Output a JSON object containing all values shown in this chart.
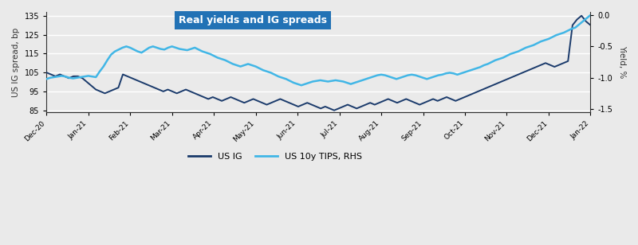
{
  "title": "Real yields and IG spreads",
  "title_bg_color": "#2272B5",
  "title_text_color": "#ffffff",
  "ylabel_left": "US IG spread, bp",
  "ylabel_right": "Yield, %",
  "ylim_left": [
    84,
    137
  ],
  "ylim_right": [
    -1.55,
    0.05
  ],
  "yticks_left": [
    85,
    95,
    105,
    115,
    125,
    135
  ],
  "yticks_right": [
    -1.5,
    -1.0,
    -0.5,
    0.0
  ],
  "bg_color": "#eaeaea",
  "line1_color": "#1a3a6b",
  "line2_color": "#41b6e6",
  "line1_label": "US IG",
  "line2_label": "US 10y TIPS, RHS",
  "x_labels": [
    "Dec-20",
    "Jan-21",
    "Feb-21",
    "Mar-21",
    "Apr-21",
    "May-21",
    "Jun-21",
    "Jul-21",
    "Aug-21",
    "Sep-21",
    "Oct-21",
    "Nov-21",
    "Dec-21",
    "Jan-22"
  ],
  "us_ig": [
    105,
    104,
    103,
    104,
    103,
    102,
    103,
    103,
    102,
    100,
    98,
    96,
    95,
    94,
    95,
    96,
    97,
    104,
    103,
    102,
    101,
    100,
    99,
    98,
    97,
    96,
    95,
    96,
    95,
    94,
    95,
    96,
    95,
    94,
    93,
    92,
    91,
    92,
    91,
    90,
    91,
    92,
    91,
    90,
    89,
    90,
    91,
    90,
    89,
    88,
    89,
    90,
    91,
    90,
    89,
    88,
    87,
    88,
    89,
    88,
    87,
    86,
    87,
    86,
    85,
    86,
    87,
    88,
    87,
    86,
    87,
    88,
    89,
    88,
    89,
    90,
    91,
    90,
    89,
    90,
    91,
    90,
    89,
    88,
    89,
    90,
    91,
    90,
    91,
    92,
    91,
    90,
    91,
    92,
    93,
    94,
    95,
    96,
    97,
    98,
    99,
    100,
    101,
    102,
    103,
    104,
    105,
    106,
    107,
    108,
    109,
    110,
    109,
    108,
    109,
    110,
    111,
    130,
    133,
    135,
    132,
    130
  ],
  "tips_yield": [
    -1.02,
    -1.0,
    -0.99,
    -0.98,
    -0.97,
    -0.98,
    -1.0,
    -1.01,
    -1.0,
    -0.99,
    -0.98,
    -0.97,
    -0.98,
    -0.99,
    -0.9,
    -0.82,
    -0.72,
    -0.63,
    -0.58,
    -0.55,
    -0.52,
    -0.5,
    -0.52,
    -0.55,
    -0.58,
    -0.6,
    -0.56,
    -0.52,
    -0.5,
    -0.52,
    -0.54,
    -0.55,
    -0.52,
    -0.5,
    -0.52,
    -0.54,
    -0.55,
    -0.56,
    -0.54,
    -0.52,
    -0.55,
    -0.58,
    -0.6,
    -0.62,
    -0.65,
    -0.68,
    -0.7,
    -0.72,
    -0.75,
    -0.78,
    -0.8,
    -0.82,
    -0.8,
    -0.78,
    -0.8,
    -0.82,
    -0.85,
    -0.88,
    -0.9,
    -0.92,
    -0.95,
    -0.98,
    -1.0,
    -1.02,
    -1.05,
    -1.08,
    -1.1,
    -1.12,
    -1.1,
    -1.08,
    -1.06,
    -1.05,
    -1.04,
    -1.05,
    -1.06,
    -1.05,
    -1.04,
    -1.05,
    -1.06,
    -1.08,
    -1.1,
    -1.08,
    -1.06,
    -1.04,
    -1.02,
    -1.0,
    -0.98,
    -0.96,
    -0.95,
    -0.96,
    -0.98,
    -1.0,
    -1.02,
    -1.0,
    -0.98,
    -0.96,
    -0.95,
    -0.96,
    -0.98,
    -1.0,
    -1.02,
    -1.0,
    -0.98,
    -0.96,
    -0.95,
    -0.93,
    -0.92,
    -0.93,
    -0.95,
    -0.93,
    -0.91,
    -0.89,
    -0.87,
    -0.85,
    -0.83,
    -0.8,
    -0.78,
    -0.75,
    -0.72,
    -0.7,
    -0.68,
    -0.65,
    -0.62,
    -0.6,
    -0.58,
    -0.55,
    -0.52,
    -0.5,
    -0.48,
    -0.45,
    -0.42,
    -0.4,
    -0.38,
    -0.35,
    -0.32,
    -0.3,
    -0.28,
    -0.25,
    -0.22,
    -0.2,
    -0.15,
    -0.1,
    -0.05,
    0.0
  ]
}
